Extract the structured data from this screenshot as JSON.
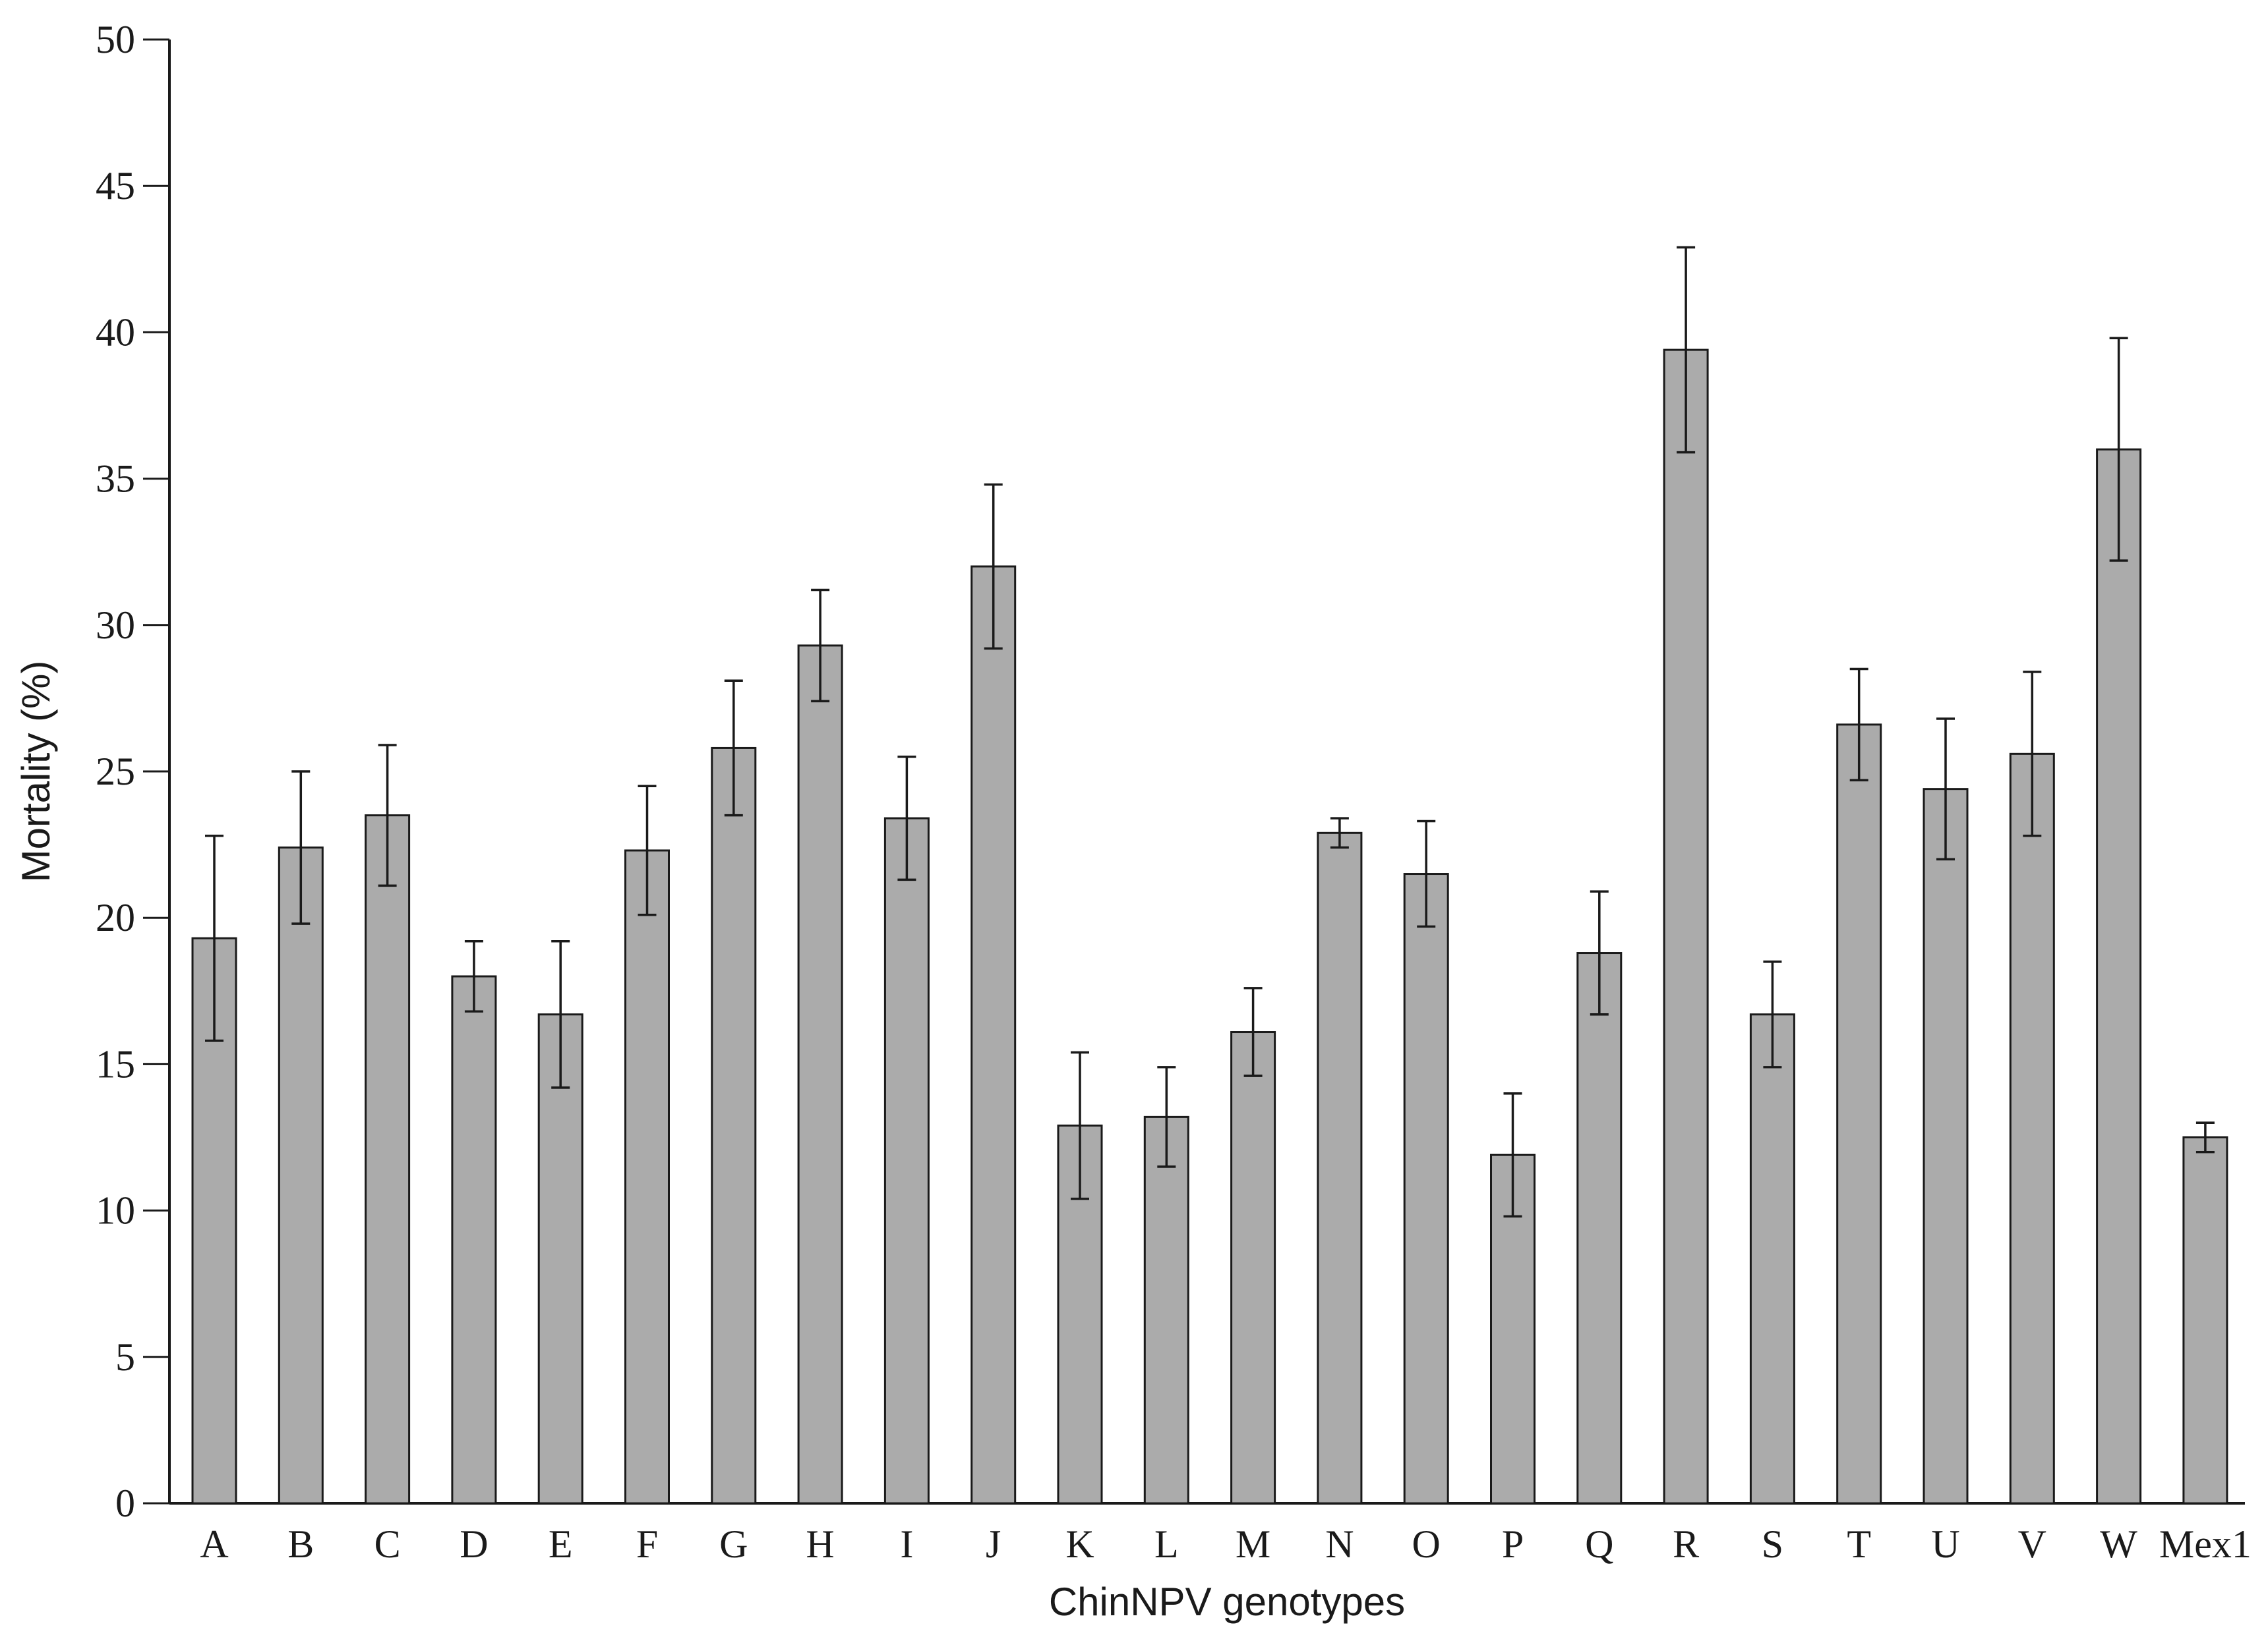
{
  "chart_data": {
    "type": "bar",
    "xlabel": "ChinNPV genotypes",
    "ylabel": "Mortality (%)",
    "ylim": [
      0,
      50
    ],
    "yticks": [
      "0",
      "5",
      "10",
      "15",
      "20",
      "25",
      "30",
      "35",
      "40",
      "45",
      "50"
    ],
    "grid": false,
    "categories": [
      "A",
      "B",
      "C",
      "D",
      "E",
      "F",
      "G",
      "H",
      "I",
      "J",
      "K",
      "L",
      "M",
      "N",
      "O",
      "P",
      "Q",
      "R",
      "S",
      "T",
      "U",
      "V",
      "W",
      "Mex1"
    ],
    "values": [
      19.3,
      22.4,
      23.5,
      18.0,
      16.7,
      22.3,
      25.8,
      29.3,
      23.4,
      32.0,
      12.9,
      13.2,
      16.1,
      22.9,
      21.5,
      11.9,
      18.8,
      39.4,
      16.7,
      26.6,
      24.4,
      25.6,
      36.0,
      12.5
    ],
    "error": [
      3.5,
      2.6,
      2.4,
      1.2,
      2.5,
      2.2,
      2.3,
      1.9,
      2.1,
      2.8,
      2.5,
      1.7,
      1.5,
      0.5,
      1.8,
      2.1,
      2.1,
      3.5,
      1.8,
      1.9,
      2.4,
      2.8,
      3.8,
      0.5
    ],
    "colors": {
      "bar_fill": "#ababab",
      "bar_stroke": "#1a1a1a",
      "axis": "#1a1a1a"
    }
  }
}
